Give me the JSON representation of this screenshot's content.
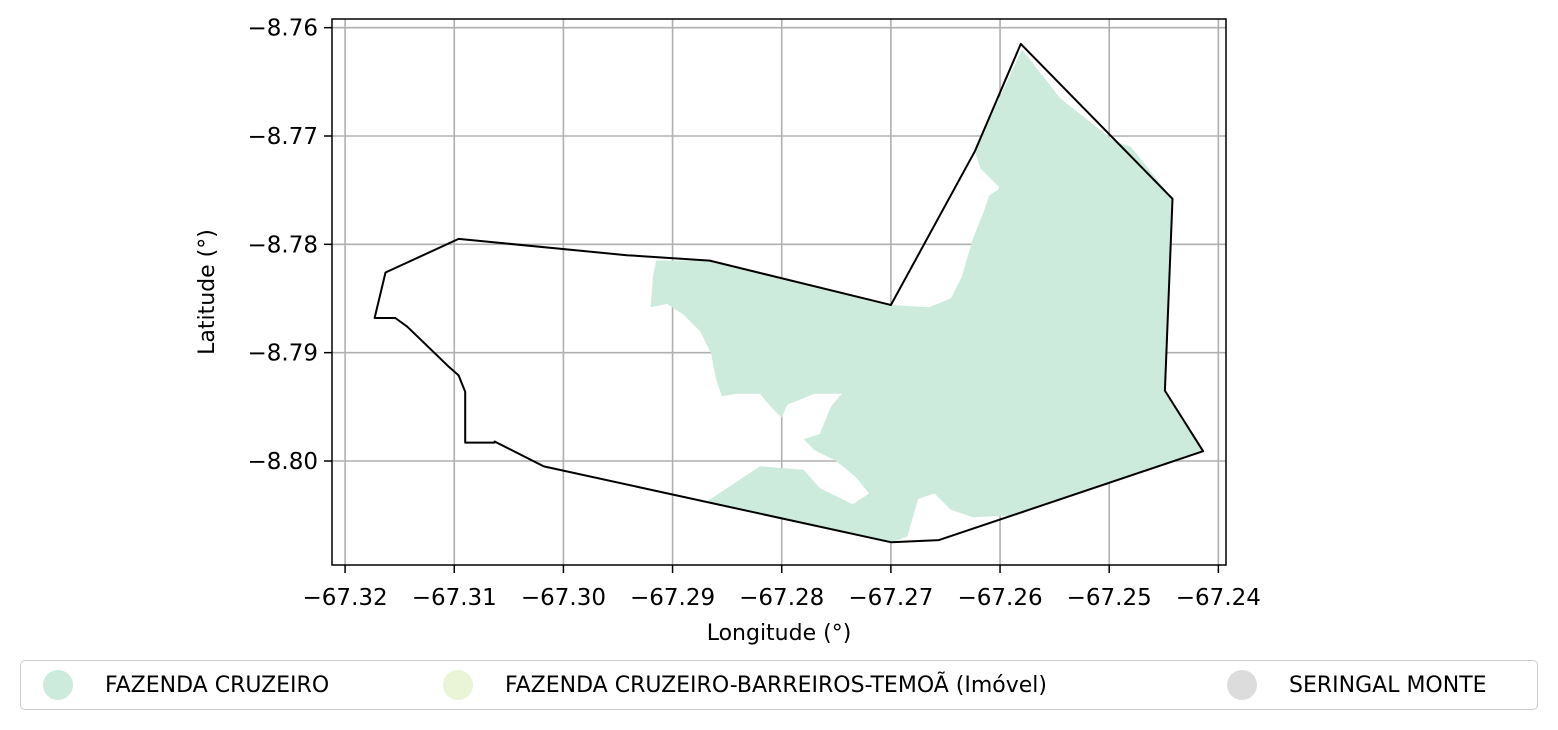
{
  "chart_data": {
    "type": "map",
    "xlabel": "Longitude (°)",
    "ylabel": "Latitude (°)",
    "xlim": [
      -67.3212,
      -67.2393
    ],
    "ylim": [
      -8.8096,
      -8.7592
    ],
    "grid": true,
    "xticks": [
      -67.32,
      -67.31,
      -67.3,
      -67.29,
      -67.28,
      -67.27,
      -67.26,
      -67.25,
      -67.24
    ],
    "yticks": [
      -8.76,
      -8.77,
      -8.78,
      -8.79,
      -8.8
    ],
    "xtick_labels": [
      "−67.32",
      "−67.31",
      "−67.30",
      "−67.29",
      "−67.28",
      "−67.27",
      "−67.26",
      "−67.25",
      "−67.24"
    ],
    "ytick_labels": [
      "−8.76",
      "−8.77",
      "−8.78",
      "−8.79",
      "−8.80"
    ],
    "boundary_color": "#000000",
    "boundary": [
      [
        -67.2581,
        -8.7615
      ],
      [
        -67.2442,
        -8.7758
      ],
      [
        -67.2449,
        -8.7935
      ],
      [
        -67.2414,
        -8.7991
      ],
      [
        -67.2656,
        -8.8073
      ],
      [
        -67.27,
        -8.8075
      ],
      [
        -67.3018,
        -8.8005
      ],
      [
        -67.3063,
        -8.7982
      ],
      [
        -67.3063,
        -8.7983
      ],
      [
        -67.309,
        -8.7983
      ],
      [
        -67.309,
        -8.7936
      ],
      [
        -67.3096,
        -8.7921
      ],
      [
        -67.3106,
        -8.7912
      ],
      [
        -67.3143,
        -8.7876
      ],
      [
        -67.3154,
        -8.7868
      ],
      [
        -67.3173,
        -8.7868
      ],
      [
        -67.3163,
        -8.7826
      ],
      [
        -67.3096,
        -8.7795
      ],
      [
        -67.2942,
        -8.781
      ],
      [
        -67.2866,
        -8.7815
      ],
      [
        -67.27,
        -8.7856
      ],
      [
        -67.2623,
        -8.7714
      ]
    ],
    "fill_color": "#cdebdd",
    "fill_region": [
      [
        -67.258,
        -8.762
      ],
      [
        -67.2545,
        -8.7665
      ],
      [
        -67.2495,
        -8.7705
      ],
      [
        -67.248,
        -8.771
      ],
      [
        -67.2442,
        -8.7758
      ],
      [
        -67.2449,
        -8.7935
      ],
      [
        -67.2414,
        -8.7991
      ],
      [
        -67.2561,
        -8.8041
      ],
      [
        -67.2585,
        -8.805
      ],
      [
        -67.2625,
        -8.8052
      ],
      [
        -67.2645,
        -8.8045
      ],
      [
        -67.266,
        -8.803
      ],
      [
        -67.2675,
        -8.8035
      ],
      [
        -67.2685,
        -8.807
      ],
      [
        -67.27,
        -8.8075
      ],
      [
        -67.2868,
        -8.8037
      ],
      [
        -67.282,
        -8.8005
      ],
      [
        -67.278,
        -8.8008
      ],
      [
        -67.2765,
        -8.8025
      ],
      [
        -67.2735,
        -8.804
      ],
      [
        -67.272,
        -8.803
      ],
      [
        -67.2732,
        -8.8015
      ],
      [
        -67.275,
        -8.8
      ],
      [
        -67.277,
        -8.799
      ],
      [
        -67.278,
        -8.798
      ],
      [
        -67.2765,
        -8.7975
      ],
      [
        -67.2755,
        -8.795
      ],
      [
        -67.2745,
        -8.7938
      ],
      [
        -67.277,
        -8.7938
      ],
      [
        -67.2795,
        -8.7948
      ],
      [
        -67.28,
        -8.796
      ],
      [
        -67.281,
        -8.795
      ],
      [
        -67.282,
        -8.7938
      ],
      [
        -67.284,
        -8.7938
      ],
      [
        -67.2855,
        -8.794
      ],
      [
        -67.286,
        -8.7925
      ],
      [
        -67.2865,
        -8.79
      ],
      [
        -67.2875,
        -8.788
      ],
      [
        -67.289,
        -8.7865
      ],
      [
        -67.2905,
        -8.7855
      ],
      [
        -67.292,
        -8.7858
      ],
      [
        -67.2918,
        -8.783
      ],
      [
        -67.2915,
        -8.7815
      ],
      [
        -67.2866,
        -8.7815
      ],
      [
        -67.27,
        -8.7856
      ],
      [
        -67.2665,
        -8.7858
      ],
      [
        -67.2645,
        -8.785
      ],
      [
        -67.2635,
        -8.783
      ],
      [
        -67.2625,
        -8.7795
      ],
      [
        -67.2615,
        -8.777
      ],
      [
        -67.261,
        -8.7755
      ],
      [
        -67.26,
        -8.7748
      ],
      [
        -67.2618,
        -8.773
      ],
      [
        -67.2623,
        -8.7714
      ]
    ],
    "legend": [
      {
        "label": "FAZENDA CRUZEIRO",
        "color": "#cdebdd"
      },
      {
        "label": "FAZENDA CRUZEIRO-BARREIROS-TEMOÃ (Imóvel)",
        "color": "#e9f5d6"
      },
      {
        "label": "SERINGAL MONTE",
        "color": "#dcdcdc"
      }
    ],
    "legend_placement": "bottom"
  }
}
